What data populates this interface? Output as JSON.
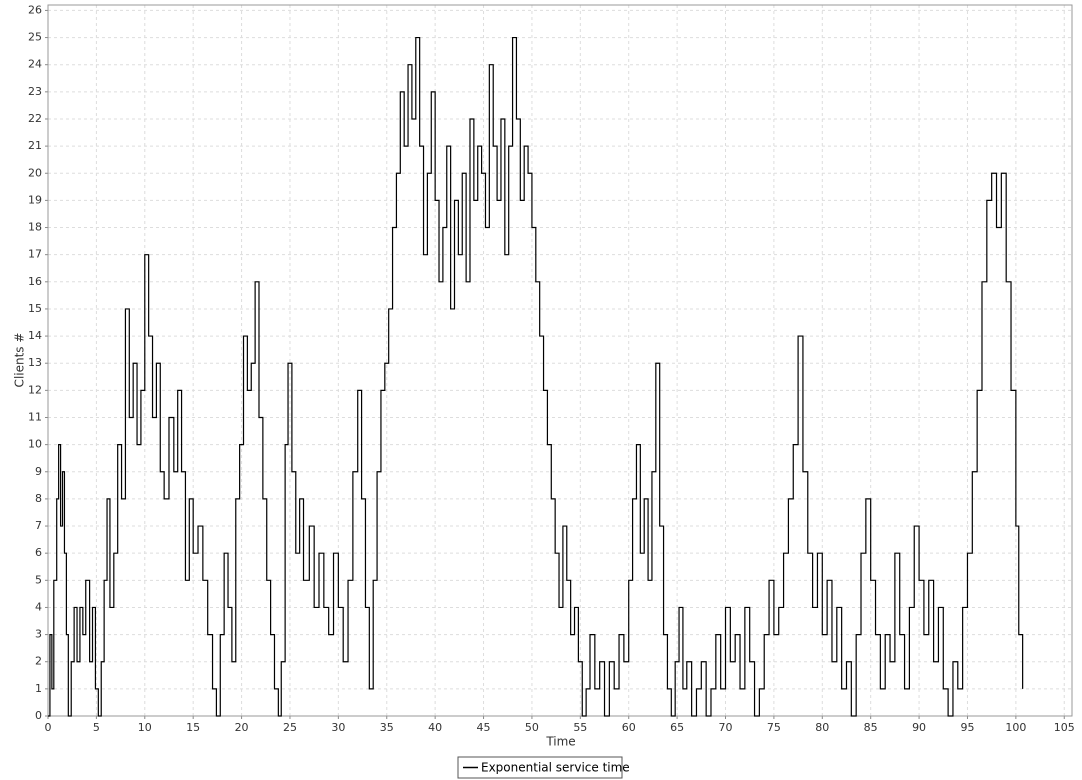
{
  "chart_data": {
    "type": "line",
    "step": true,
    "grid": true,
    "legend": "bottom",
    "x_label": "Time",
    "y_label": "Clients #",
    "xlim": [
      0,
      105.8
    ],
    "ylim": [
      0,
      26.2
    ],
    "xticks": [
      0,
      5,
      10,
      15,
      20,
      25,
      30,
      35,
      40,
      45,
      50,
      55,
      60,
      65,
      70,
      75,
      80,
      85,
      90,
      95,
      100,
      105
    ],
    "yticks": [
      0,
      1,
      2,
      3,
      4,
      5,
      6,
      7,
      8,
      9,
      10,
      11,
      12,
      13,
      14,
      15,
      16,
      17,
      18,
      19,
      20,
      21,
      22,
      23,
      24,
      25,
      26
    ],
    "x": [
      0,
      0.2,
      0.4,
      0.6,
      0.9,
      1.1,
      1.3,
      1.5,
      1.7,
      1.9,
      2.1,
      2.4,
      2.7,
      3.0,
      3.3,
      3.6,
      3.9,
      4.3,
      4.6,
      4.9,
      5.2,
      5.5,
      5.8,
      6.1,
      6.4,
      6.8,
      7.2,
      7.6,
      8.0,
      8.4,
      8.8,
      9.2,
      9.6,
      10.0,
      10.4,
      10.8,
      11.2,
      11.6,
      12.0,
      12.5,
      13.0,
      13.4,
      13.8,
      14.2,
      14.6,
      15.0,
      15.5,
      16.0,
      16.5,
      17.0,
      17.4,
      17.8,
      18.2,
      18.6,
      19.0,
      19.4,
      19.8,
      20.2,
      20.6,
      21.0,
      21.4,
      21.8,
      22.2,
      22.6,
      23.0,
      23.4,
      23.8,
      24.1,
      24.5,
      24.8,
      25.2,
      25.6,
      26.0,
      26.4,
      27.0,
      27.5,
      28.0,
      28.5,
      29.0,
      29.5,
      30.0,
      30.5,
      31.0,
      31.5,
      32.0,
      32.4,
      32.8,
      33.2,
      33.6,
      34.0,
      34.4,
      34.8,
      35.2,
      35.6,
      36.0,
      36.4,
      36.8,
      37.2,
      37.6,
      38.0,
      38.4,
      38.8,
      39.2,
      39.6,
      40.0,
      40.4,
      40.8,
      41.2,
      41.6,
      42.0,
      42.4,
      42.8,
      43.2,
      43.6,
      44.0,
      44.4,
      44.8,
      45.2,
      45.6,
      46.0,
      46.4,
      46.8,
      47.2,
      47.6,
      48.0,
      48.4,
      48.8,
      49.2,
      49.6,
      50.0,
      50.4,
      50.8,
      51.2,
      51.6,
      52.0,
      52.4,
      52.8,
      53.2,
      53.6,
      54.0,
      54.4,
      54.8,
      55.2,
      55.6,
      56.0,
      56.5,
      57.0,
      57.5,
      58.0,
      58.5,
      59.0,
      59.5,
      60.0,
      60.4,
      60.8,
      61.2,
      61.6,
      62.0,
      62.4,
      62.8,
      63.2,
      63.6,
      64.0,
      64.4,
      64.8,
      65.2,
      65.6,
      66.0,
      66.5,
      67.0,
      67.5,
      68.0,
      68.5,
      69.0,
      69.5,
      70.0,
      70.5,
      71.0,
      71.5,
      72.0,
      72.5,
      73.0,
      73.5,
      74.0,
      74.5,
      75.0,
      75.5,
      76.0,
      76.5,
      77.0,
      77.5,
      78.0,
      78.5,
      79.0,
      79.5,
      80.0,
      80.5,
      81.0,
      81.5,
      82.0,
      82.5,
      83.0,
      83.5,
      84.0,
      84.5,
      85.0,
      85.5,
      86.0,
      86.5,
      87.0,
      87.5,
      88.0,
      88.5,
      89.0,
      89.5,
      90.0,
      90.5,
      91.0,
      91.5,
      92.0,
      92.5,
      93.0,
      93.5,
      94.0,
      94.5,
      95.0,
      95.5,
      96.0,
      96.5,
      97.0,
      97.5,
      98.0,
      98.5,
      99.0,
      99.5,
      100.0,
      100.3,
      100.7
    ],
    "series": [
      {
        "name": "Exponential service time",
        "color": "#000000",
        "values": [
          0,
          3,
          1,
          5,
          8,
          10,
          7,
          9,
          6,
          3,
          0,
          2,
          4,
          2,
          4,
          3,
          5,
          2,
          4,
          1,
          0,
          2,
          5,
          8,
          4,
          6,
          10,
          8,
          15,
          11,
          13,
          10,
          12,
          17,
          14,
          11,
          13,
          9,
          8,
          11,
          9,
          12,
          9,
          5,
          8,
          6,
          7,
          5,
          3,
          1,
          0,
          3,
          6,
          4,
          2,
          8,
          10,
          14,
          12,
          13,
          16,
          11,
          8,
          5,
          3,
          1,
          0,
          2,
          10,
          13,
          9,
          6,
          8,
          5,
          7,
          4,
          6,
          4,
          3,
          6,
          4,
          2,
          5,
          9,
          12,
          8,
          4,
          1,
          5,
          9,
          12,
          13,
          15,
          18,
          20,
          23,
          21,
          24,
          22,
          25,
          21,
          17,
          20,
          23,
          19,
          16,
          18,
          21,
          15,
          19,
          17,
          20,
          16,
          22,
          19,
          21,
          20,
          18,
          24,
          21,
          19,
          22,
          17,
          21,
          25,
          22,
          19,
          21,
          20,
          18,
          16,
          14,
          12,
          10,
          8,
          6,
          4,
          7,
          5,
          3,
          4,
          2,
          0,
          1,
          3,
          1,
          2,
          0,
          2,
          1,
          3,
          2,
          5,
          8,
          10,
          6,
          8,
          5,
          9,
          13,
          7,
          3,
          1,
          0,
          2,
          4,
          1,
          2,
          0,
          1,
          2,
          0,
          1,
          3,
          1,
          4,
          2,
          3,
          1,
          4,
          2,
          0,
          1,
          3,
          5,
          3,
          4,
          6,
          8,
          10,
          14,
          9,
          6,
          4,
          6,
          3,
          5,
          2,
          4,
          1,
          2,
          0,
          3,
          6,
          8,
          5,
          3,
          1,
          3,
          2,
          6,
          3,
          1,
          4,
          7,
          5,
          3,
          5,
          2,
          4,
          1,
          0,
          2,
          1,
          4,
          6,
          9,
          12,
          16,
          19,
          20,
          18,
          20,
          16,
          12,
          7,
          3,
          1
        ]
      }
    ]
  }
}
